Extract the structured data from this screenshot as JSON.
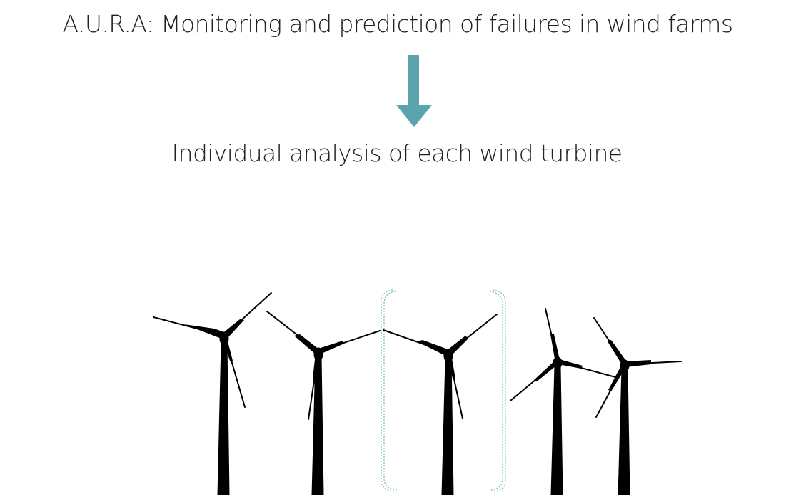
{
  "diagram": {
    "title": "A.U.R.A: Monitoring and prediction of failures in wind farms",
    "subtitle": "Individual analysis of each wind turbine",
    "colors": {
      "accent": "#5ba3ad",
      "highlight_bracket": "#6fbfb3",
      "turbine": "#000000",
      "text": "#222222"
    },
    "turbines": [
      {
        "label": "wind-turbine-1",
        "highlighted": false
      },
      {
        "label": "wind-turbine-2",
        "highlighted": false
      },
      {
        "label": "wind-turbine-3",
        "highlighted": true
      },
      {
        "label": "wind-turbine-4",
        "highlighted": false
      },
      {
        "label": "wind-turbine-5",
        "highlighted": false
      }
    ]
  }
}
